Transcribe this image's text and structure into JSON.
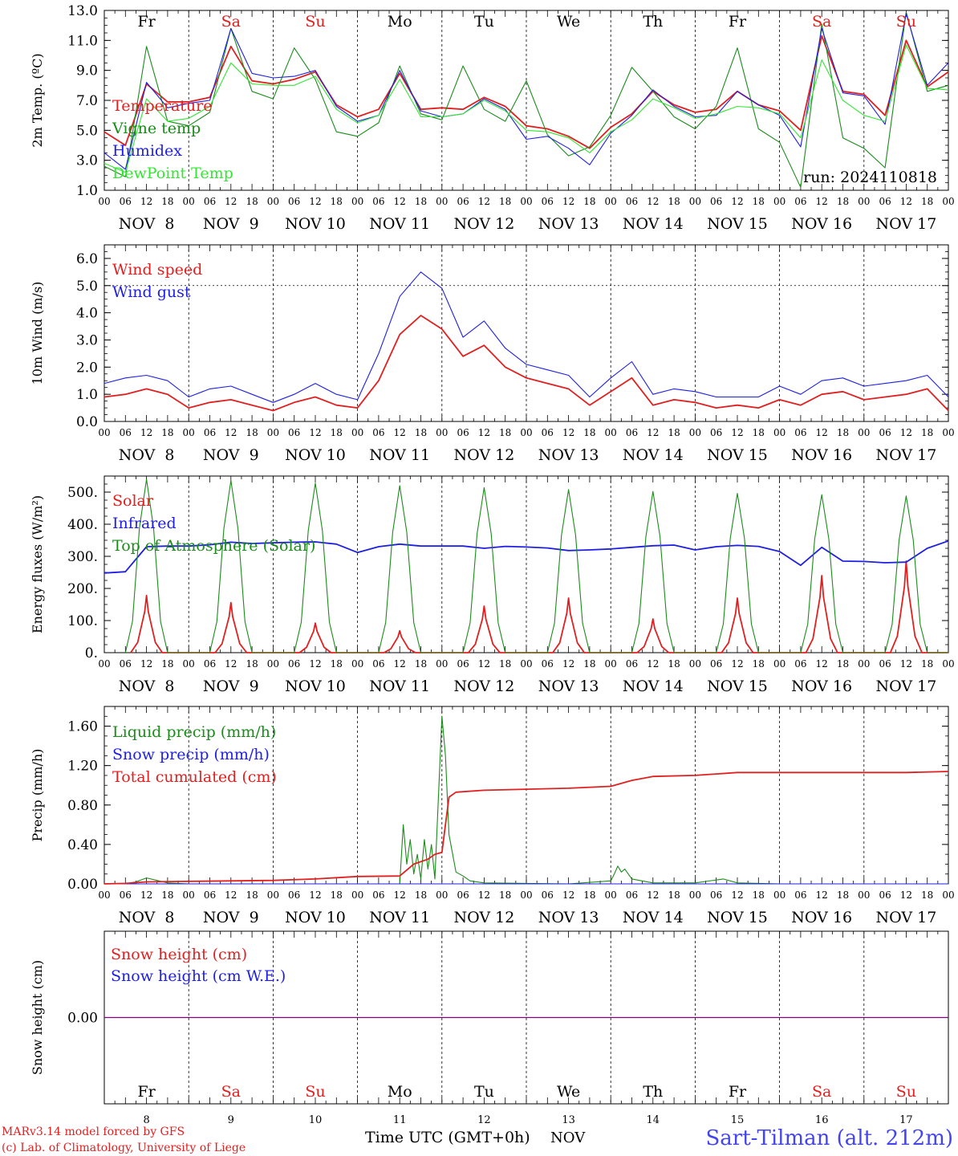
{
  "run_label": "run: 2024110818",
  "weekdays": [
    {
      "label": "Fr",
      "color": "#000000"
    },
    {
      "label": "Sa",
      "color": "#e02020"
    },
    {
      "label": "Su",
      "color": "#e02020"
    },
    {
      "label": "Mo",
      "color": "#000000"
    },
    {
      "label": "Tu",
      "color": "#000000"
    },
    {
      "label": "We",
      "color": "#000000"
    },
    {
      "label": "Th",
      "color": "#000000"
    },
    {
      "label": "Fr",
      "color": "#000000"
    },
    {
      "label": "Sa",
      "color": "#e02020"
    },
    {
      "label": "Su",
      "color": "#e02020"
    }
  ],
  "date_labels": [
    "NOV  8",
    "NOV  9",
    "NOV 10",
    "NOV 11",
    "NOV 12",
    "NOV 13",
    "NOV 14",
    "NOV 15",
    "NOV 16",
    "NOV 17"
  ],
  "hour_ticks": [
    "00",
    "06",
    "12",
    "18"
  ],
  "bottom_day_numbers": [
    "8",
    "9",
    "10",
    "11",
    "12",
    "13",
    "14",
    "15",
    "16",
    "17"
  ],
  "footer": {
    "model": "MARv3.14 model forced by GFS",
    "credit": "(c) Lab. of Climatology, University of Liege",
    "xlabel": "Time UTC (GMT+0h)",
    "month": "NOV",
    "station": "Sart-Tilman (alt. 212m)"
  },
  "colors": {
    "red": "#e02020",
    "green": "#1a8c1a",
    "blue": "#1f1fe0",
    "lightgreen": "#33e633",
    "purple": "#800080"
  },
  "chart_data": [
    {
      "type": "line",
      "ylabel": "2m Temp. (ºC)",
      "ylim": [
        1.0,
        13.0
      ],
      "yticks": [
        "1.0",
        "3.0",
        "5.0",
        "7.0",
        "9.0",
        "11.0",
        "13.0"
      ],
      "x_unit": "hours since Nov 8 00 UTC",
      "series": [
        {
          "name": "Temperature",
          "color": "red",
          "x": [
            0,
            6,
            12,
            18,
            24,
            30,
            36,
            42,
            48,
            54,
            60,
            66,
            72,
            78,
            84,
            90,
            96,
            102,
            108,
            114,
            120,
            126,
            132,
            138,
            144,
            150,
            156,
            162,
            168,
            174,
            180,
            186,
            192,
            198,
            204,
            210,
            216,
            222,
            228,
            234,
            240
          ],
          "values": [
            4.9,
            4.0,
            8.1,
            6.9,
            6.9,
            7.2,
            10.6,
            8.3,
            8.1,
            8.4,
            8.9,
            6.7,
            5.9,
            6.4,
            8.8,
            6.4,
            6.5,
            6.4,
            7.2,
            6.6,
            5.3,
            5.1,
            4.6,
            3.8,
            5.2,
            6.1,
            7.6,
            6.7,
            6.2,
            6.4,
            7.6,
            6.7,
            6.3,
            5.0,
            11.3,
            7.6,
            7.4,
            6.0,
            11.0,
            7.9,
            8.9
          ]
        },
        {
          "name": "Vigne temp",
          "color": "green",
          "x": [
            0,
            6,
            12,
            18,
            24,
            30,
            36,
            42,
            48,
            54,
            60,
            66,
            72,
            78,
            84,
            90,
            96,
            102,
            108,
            114,
            120,
            126,
            132,
            138,
            144,
            150,
            156,
            162,
            168,
            174,
            180,
            186,
            192,
            198,
            204,
            210,
            216,
            222,
            228,
            234,
            240
          ],
          "values": [
            2.6,
            1.9,
            10.6,
            5.6,
            5.3,
            6.2,
            11.8,
            7.6,
            7.1,
            10.5,
            8.4,
            4.9,
            4.6,
            5.5,
            9.3,
            6.1,
            5.7,
            9.3,
            6.4,
            5.6,
            8.3,
            4.7,
            3.3,
            3.9,
            6.0,
            9.2,
            7.6,
            5.9,
            5.1,
            6.6,
            10.5,
            5.1,
            4.2,
            1.2,
            12.1,
            4.5,
            3.8,
            2.5,
            12.9,
            7.6,
            8.0
          ]
        },
        {
          "name": "Humidex",
          "color": "blue",
          "x": [
            0,
            6,
            12,
            18,
            24,
            30,
            36,
            42,
            48,
            54,
            60,
            66,
            72,
            78,
            84,
            90,
            96,
            102,
            108,
            114,
            120,
            126,
            132,
            138,
            144,
            150,
            156,
            162,
            168,
            174,
            180,
            186,
            192,
            198,
            204,
            210,
            216,
            222,
            228,
            234,
            240
          ],
          "values": [
            3.5,
            2.4,
            8.2,
            6.5,
            6.8,
            7.0,
            11.8,
            8.8,
            8.5,
            8.6,
            9.0,
            6.6,
            5.6,
            6.0,
            9.0,
            6.3,
            5.9,
            6.1,
            7.1,
            6.4,
            4.4,
            4.6,
            3.8,
            2.7,
            4.8,
            6.0,
            7.7,
            6.6,
            5.9,
            6.0,
            7.6,
            6.7,
            6.0,
            3.9,
            11.8,
            7.5,
            7.3,
            5.4,
            12.8,
            8.0,
            9.5
          ]
        },
        {
          "name": "DewPoint Temp",
          "color": "lightgreen",
          "x": [
            0,
            6,
            12,
            18,
            24,
            30,
            36,
            42,
            48,
            54,
            60,
            66,
            72,
            78,
            84,
            90,
            96,
            102,
            108,
            114,
            120,
            126,
            132,
            138,
            144,
            150,
            156,
            162,
            168,
            174,
            180,
            186,
            192,
            198,
            204,
            210,
            216,
            222,
            228,
            234,
            240
          ],
          "values": [
            2.8,
            2.2,
            7.1,
            5.6,
            5.8,
            6.6,
            9.5,
            8.1,
            8.0,
            8.0,
            8.6,
            6.4,
            5.5,
            6.0,
            8.4,
            5.9,
            5.9,
            6.1,
            7.0,
            6.3,
            5.0,
            4.9,
            4.5,
            3.5,
            4.9,
            5.7,
            7.1,
            6.5,
            5.8,
            6.1,
            6.6,
            6.5,
            6.1,
            4.5,
            9.7,
            7.0,
            6.0,
            5.6,
            10.7,
            7.8,
            7.7
          ]
        }
      ]
    },
    {
      "type": "line",
      "ylabel": "10m Wind (m/s)",
      "ylim": [
        0.0,
        6.5
      ],
      "yticks": [
        "0.0",
        "1.0",
        "2.0",
        "3.0",
        "4.0",
        "5.0",
        "6.0"
      ],
      "x_unit": "hours since Nov 8 00 UTC",
      "series": [
        {
          "name": "Wind speed",
          "color": "red",
          "x": [
            0,
            6,
            12,
            18,
            24,
            30,
            36,
            42,
            48,
            54,
            60,
            66,
            72,
            78,
            84,
            90,
            96,
            102,
            108,
            114,
            120,
            126,
            132,
            138,
            144,
            150,
            156,
            162,
            168,
            174,
            180,
            186,
            192,
            198,
            204,
            210,
            216,
            222,
            228,
            234,
            240
          ],
          "values": [
            0.9,
            1.0,
            1.2,
            1.0,
            0.5,
            0.7,
            0.8,
            0.6,
            0.4,
            0.7,
            0.9,
            0.6,
            0.5,
            1.5,
            3.2,
            3.9,
            3.4,
            2.4,
            2.8,
            2.0,
            1.6,
            1.4,
            1.2,
            0.6,
            1.1,
            1.6,
            0.6,
            0.8,
            0.7,
            0.5,
            0.6,
            0.5,
            0.8,
            0.6,
            1.0,
            1.1,
            0.8,
            0.9,
            1.0,
            1.2,
            0.4
          ]
        },
        {
          "name": "Wind gust",
          "color": "blue",
          "x": [
            0,
            6,
            12,
            18,
            24,
            30,
            36,
            42,
            48,
            54,
            60,
            66,
            72,
            78,
            84,
            90,
            96,
            102,
            108,
            114,
            120,
            126,
            132,
            138,
            144,
            150,
            156,
            162,
            168,
            174,
            180,
            186,
            192,
            198,
            204,
            210,
            216,
            222,
            228,
            234,
            240
          ],
          "values": [
            1.4,
            1.6,
            1.7,
            1.5,
            0.9,
            1.2,
            1.3,
            1.0,
            0.7,
            1.0,
            1.4,
            1.0,
            0.8,
            2.5,
            4.6,
            5.5,
            4.9,
            3.1,
            3.7,
            2.7,
            2.1,
            1.9,
            1.7,
            0.9,
            1.6,
            2.2,
            1.0,
            1.2,
            1.1,
            0.9,
            0.9,
            0.9,
            1.3,
            1.0,
            1.5,
            1.6,
            1.3,
            1.4,
            1.5,
            1.7,
            0.9
          ]
        }
      ]
    },
    {
      "type": "line",
      "ylabel": "Energy fluxes (W/m²)",
      "ylim": [
        0,
        550
      ],
      "yticks": [
        "0.",
        "100.",
        "200.",
        "300.",
        "400.",
        "500."
      ],
      "x_unit": "hours since Nov 8 00 UTC",
      "series": [
        {
          "name": "Solar",
          "color": "red",
          "day_peaks": [
            178,
            156,
            92,
            68,
            145,
            170,
            105,
            170,
            240,
            285
          ]
        },
        {
          "name": "Infrared",
          "color": "blue",
          "x": [
            0,
            6,
            12,
            18,
            24,
            30,
            36,
            42,
            48,
            54,
            60,
            66,
            72,
            78,
            84,
            90,
            96,
            102,
            108,
            114,
            120,
            126,
            132,
            138,
            144,
            150,
            156,
            162,
            168,
            174,
            180,
            186,
            192,
            198,
            204,
            210,
            216,
            222,
            228,
            234,
            240
          ],
          "values": [
            248,
            252,
            330,
            332,
            332,
            336,
            344,
            340,
            342,
            344,
            345,
            338,
            312,
            330,
            338,
            332,
            332,
            332,
            325,
            331,
            329,
            326,
            318,
            320,
            323,
            328,
            333,
            335,
            320,
            330,
            334,
            331,
            315,
            272,
            328,
            285,
            284,
            280,
            282,
            325,
            348
          ]
        },
        {
          "name": "Top of Atmosphere (Solar)",
          "color": "green",
          "day_peaks": [
            540,
            536,
            528,
            520,
            514,
            508,
            502,
            496,
            492,
            488
          ]
        }
      ]
    },
    {
      "type": "line",
      "ylabel": "Precip (mm/h)",
      "ylim": [
        0.0,
        1.8
      ],
      "yticks": [
        "0.00",
        "0.40",
        "0.80",
        "1.20",
        "1.60"
      ],
      "x_unit": "hours since Nov 8 00 UTC",
      "series": [
        {
          "name": "Liquid precip (mm/h)",
          "color": "green",
          "x": [
            0,
            6,
            9,
            12,
            18,
            24,
            48,
            72,
            84,
            85,
            86,
            87,
            88,
            89,
            90,
            91,
            92,
            93,
            94,
            96,
            97,
            98,
            100,
            102,
            104,
            108,
            132,
            144,
            145,
            146,
            147,
            148,
            150,
            156,
            168,
            176,
            180,
            192,
            240
          ],
          "values": [
            0,
            0,
            0.02,
            0.06,
            0.01,
            0,
            0,
            0,
            0,
            0.6,
            0.2,
            0.45,
            0.1,
            0.3,
            0.05,
            0.45,
            0.15,
            0.4,
            0.05,
            1.7,
            1.3,
            0.5,
            0.12,
            0.08,
            0.03,
            0.01,
            0,
            0.03,
            0.1,
            0.18,
            0.12,
            0.15,
            0.05,
            0.01,
            0.01,
            0.05,
            0.01,
            0,
            0
          ]
        },
        {
          "name": "Snow precip (mm/h)",
          "color": "blue",
          "x": [
            0,
            240
          ],
          "values": [
            0,
            0
          ]
        },
        {
          "name": "Total cumulated (cm)",
          "color": "red",
          "x": [
            0,
            6,
            12,
            24,
            48,
            60,
            72,
            84,
            88,
            92,
            94,
            96,
            97,
            98,
            100,
            108,
            120,
            132,
            144,
            150,
            156,
            168,
            180,
            192,
            216,
            228,
            240
          ],
          "values": [
            0,
            0.005,
            0.02,
            0.025,
            0.035,
            0.05,
            0.075,
            0.08,
            0.2,
            0.25,
            0.3,
            0.32,
            0.6,
            0.88,
            0.93,
            0.95,
            0.96,
            0.97,
            0.99,
            1.05,
            1.09,
            1.1,
            1.13,
            1.13,
            1.13,
            1.13,
            1.14
          ]
        }
      ]
    },
    {
      "type": "line",
      "ylabel": "Snow height (cm)",
      "ylim": [
        -1,
        1
      ],
      "yticks": [
        "0.00"
      ],
      "x_unit": "hours since Nov 8 00 UTC",
      "series": [
        {
          "name": "Snow height (cm)",
          "color": "red",
          "x": [
            0,
            240
          ],
          "values": [
            0,
            0
          ]
        },
        {
          "name": "Snow height (cm W.E.)",
          "color": "blue",
          "x": [
            0,
            240
          ],
          "values": [
            0,
            0
          ]
        }
      ]
    }
  ]
}
